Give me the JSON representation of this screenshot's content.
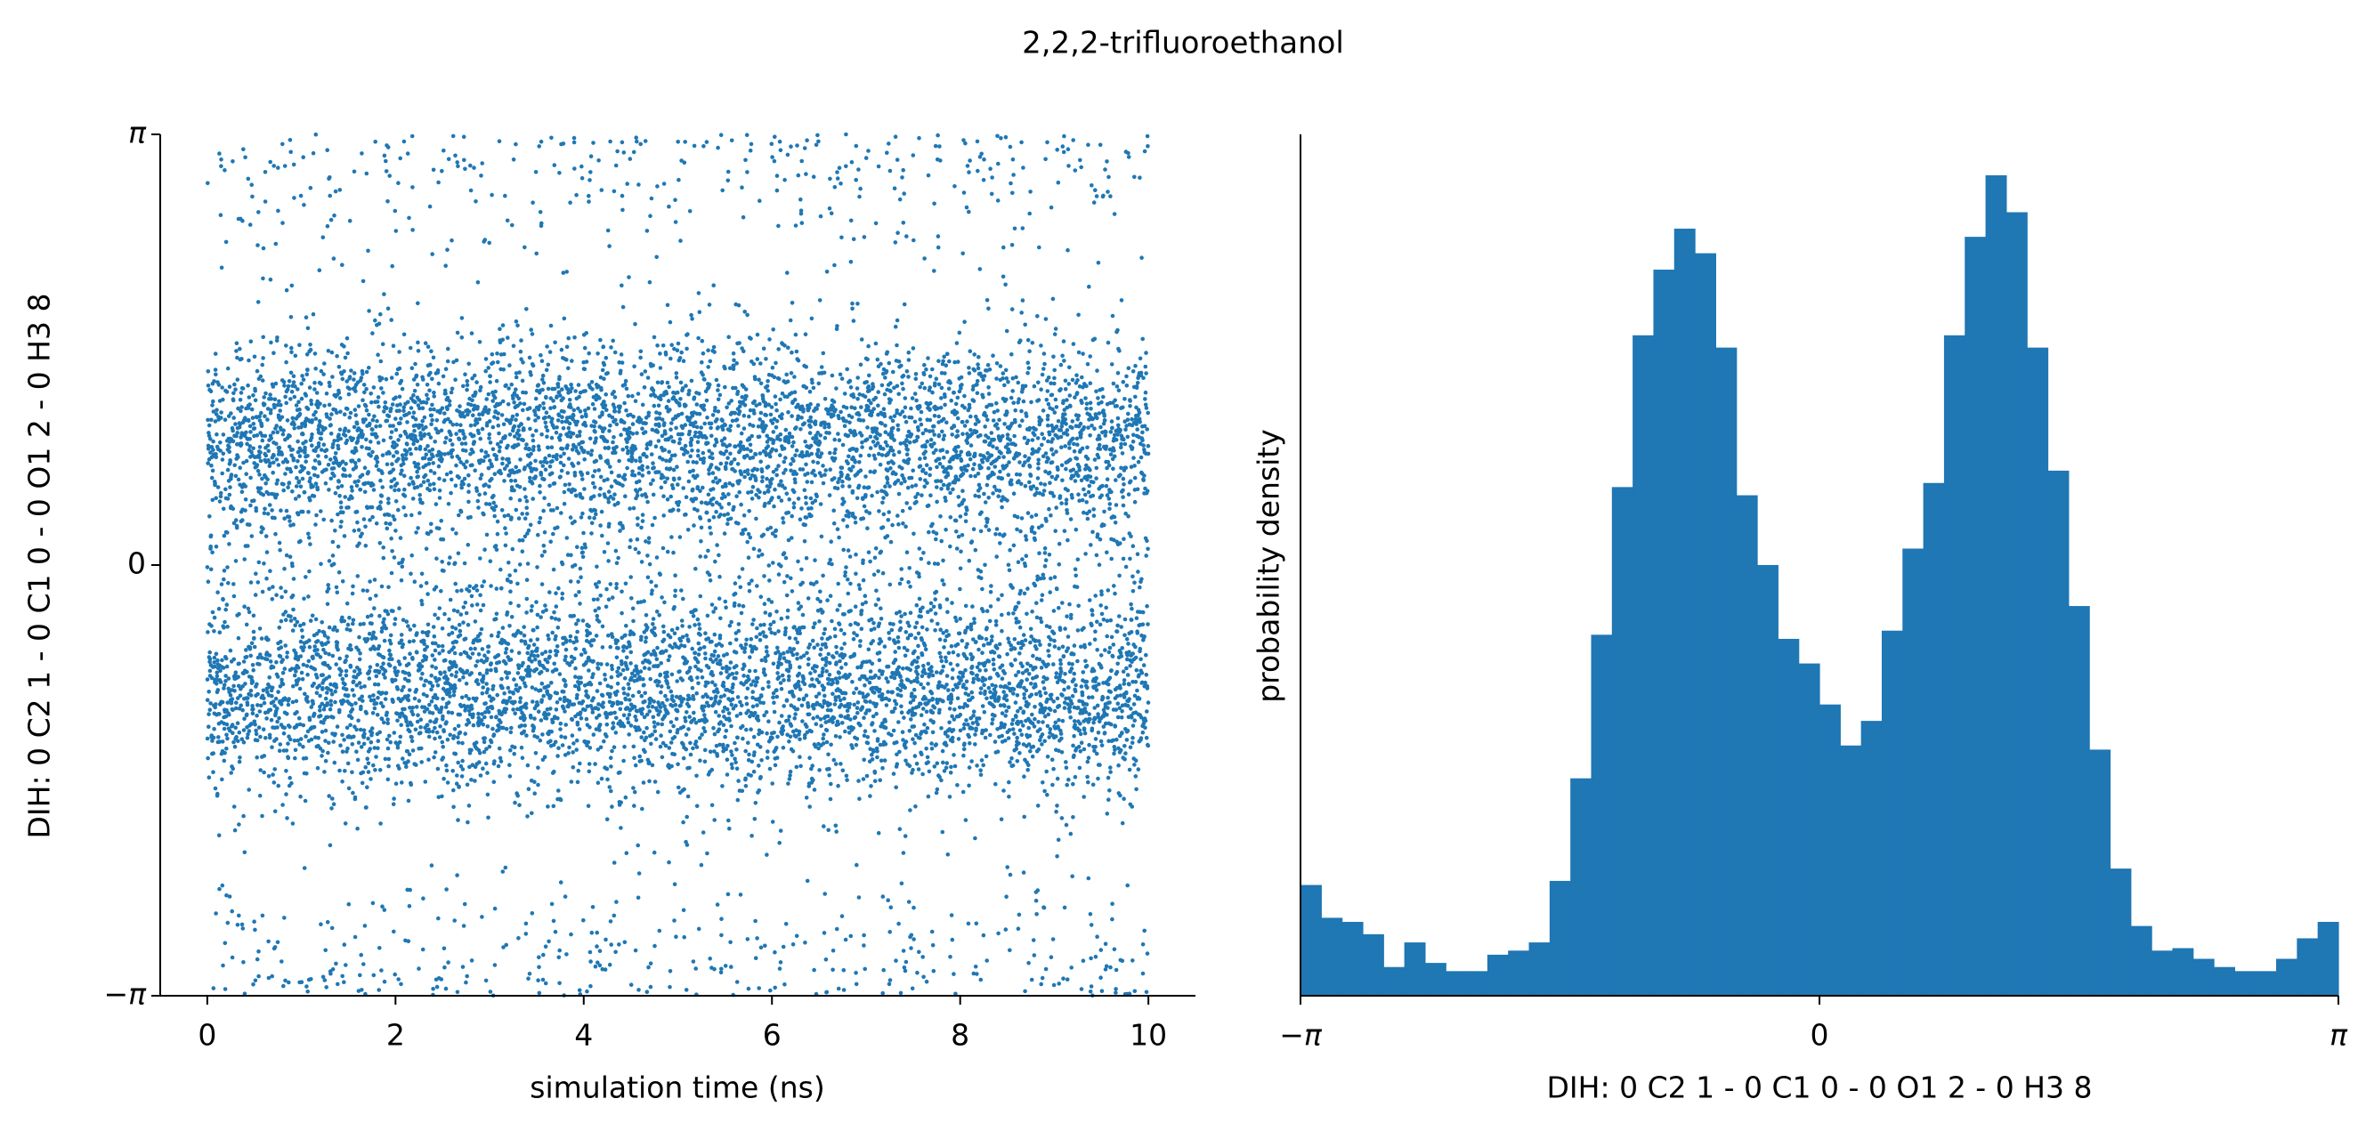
{
  "title": "2,2,2-trifluoroethanol",
  "chart_data": [
    {
      "type": "scatter",
      "xlabel": "simulation time (ns)",
      "ylabel": "DIH:  0 C2 1 -  0 C1 0 -  0 O1 2 -  0 H3 8",
      "xlim": [
        -0.5,
        10.5
      ],
      "ylim": [
        -3.14159,
        3.14159
      ],
      "x_ticks": [
        0,
        2,
        4,
        6,
        8,
        10
      ],
      "x_tick_labels": [
        "0",
        "2",
        "4",
        "6",
        "8",
        "10"
      ],
      "y_ticks": [
        -3.14159,
        0,
        3.14159
      ],
      "y_tick_labels": [
        "−π",
        "0",
        "π"
      ],
      "color": "#1f77b4",
      "n_points": 10000,
      "t_range": [
        0,
        10
      ],
      "modes": [
        {
          "center": 0.95,
          "spread": 0.35,
          "weight": 0.41
        },
        {
          "center": -0.95,
          "spread": 0.35,
          "weight": 0.41
        },
        {
          "center": 0.0,
          "spread": 0.55,
          "weight": 0.1
        },
        {
          "center": 3.14159,
          "spread": 0.5,
          "weight": 0.08
        }
      ],
      "grid": false
    },
    {
      "type": "histogram",
      "xlabel": "DIH:  0 C2 1 -  0 C1 0 -  0 O1 2 -  0 H3 8",
      "ylabel": "probability density",
      "xlim": [
        -3.14159,
        3.14159
      ],
      "x_ticks": [
        -3.14159,
        0,
        3.14159
      ],
      "x_tick_labels": [
        "−π",
        "0",
        "π"
      ],
      "bins": 50,
      "color": "#1f77b4",
      "relative_heights": [
        0.135,
        0.095,
        0.09,
        0.075,
        0.035,
        0.065,
        0.04,
        0.03,
        0.03,
        0.05,
        0.055,
        0.065,
        0.14,
        0.265,
        0.44,
        0.62,
        0.805,
        0.885,
        0.935,
        0.905,
        0.79,
        0.61,
        0.525,
        0.435,
        0.405,
        0.355,
        0.305,
        0.335,
        0.445,
        0.545,
        0.625,
        0.805,
        0.925,
        1.0,
        0.955,
        0.79,
        0.64,
        0.475,
        0.3,
        0.155,
        0.085,
        0.055,
        0.058,
        0.045,
        0.035,
        0.03,
        0.03,
        0.045,
        0.07,
        0.09
      ],
      "grid": false
    }
  ]
}
